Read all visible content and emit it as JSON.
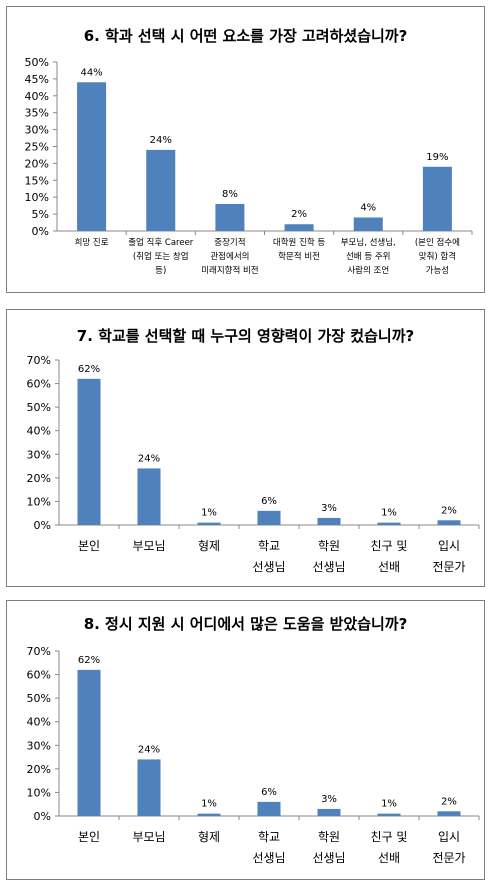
{
  "chart_data": [
    {
      "type": "bar",
      "title": "6. 학과 선택 시 어떤 요소를 가장 고려하셨습니까?",
      "ylim": [
        0,
        50
      ],
      "yticks": [
        "0%",
        "5%",
        "10%",
        "15%",
        "20%",
        "25%",
        "30%",
        "35%",
        "40%",
        "45%",
        "50%"
      ],
      "categories": [
        [
          "희망 진로"
        ],
        [
          "졸업 직후 Career",
          "(취업 또는 창업",
          "등)"
        ],
        [
          "중장기적",
          "관점에서의",
          "미래지향적 비전"
        ],
        [
          "대학원 진학 등",
          "학문적 비전"
        ],
        [
          "부모님, 선생님,",
          "선배 등 주위",
          "사람의 조언"
        ],
        [
          "(본인 점수에",
          "맞춰) 합격",
          "가능성"
        ]
      ],
      "values": [
        44,
        24,
        8,
        2,
        4,
        19
      ],
      "data_labels": [
        "44%",
        "24%",
        "8%",
        "2%",
        "4%",
        "19%"
      ],
      "grid": false,
      "bar_color": "#4f81bd"
    },
    {
      "type": "bar",
      "title": "7. 학교를 선택할 때 누구의 영향력이 가장 컸습니까?",
      "ylim": [
        0,
        70
      ],
      "yticks": [
        "0%",
        "10%",
        "20%",
        "30%",
        "40%",
        "50%",
        "60%",
        "70%"
      ],
      "categories": [
        [
          "본인"
        ],
        [
          "부모님"
        ],
        [
          "형제"
        ],
        [
          "학교",
          "선생님"
        ],
        [
          "학원",
          "선생님"
        ],
        [
          "친구 및",
          "선배"
        ],
        [
          "입시",
          "전문가"
        ]
      ],
      "values": [
        62,
        24,
        1,
        6,
        3,
        1,
        2
      ],
      "data_labels": [
        "62%",
        "24%",
        "1%",
        "6%",
        "3%",
        "1%",
        "2%"
      ],
      "grid": false,
      "bar_color": "#4f81bd"
    },
    {
      "type": "bar",
      "title": "8. 정시 지원 시 어디에서 많은 도움을 받았습니까?",
      "ylim": [
        0,
        70
      ],
      "yticks": [
        "0%",
        "10%",
        "20%",
        "30%",
        "40%",
        "50%",
        "60%",
        "70%"
      ],
      "categories": [
        [
          "본인"
        ],
        [
          "부모님"
        ],
        [
          "형제"
        ],
        [
          "학교",
          "선생님"
        ],
        [
          "학원",
          "선생님"
        ],
        [
          "친구 및",
          "선배"
        ],
        [
          "입시",
          "전문가"
        ]
      ],
      "values": [
        62,
        24,
        1,
        6,
        3,
        1,
        2
      ],
      "data_labels": [
        "62%",
        "24%",
        "1%",
        "6%",
        "3%",
        "1%",
        "2%"
      ],
      "grid": false,
      "bar_color": "#4f81bd"
    }
  ]
}
